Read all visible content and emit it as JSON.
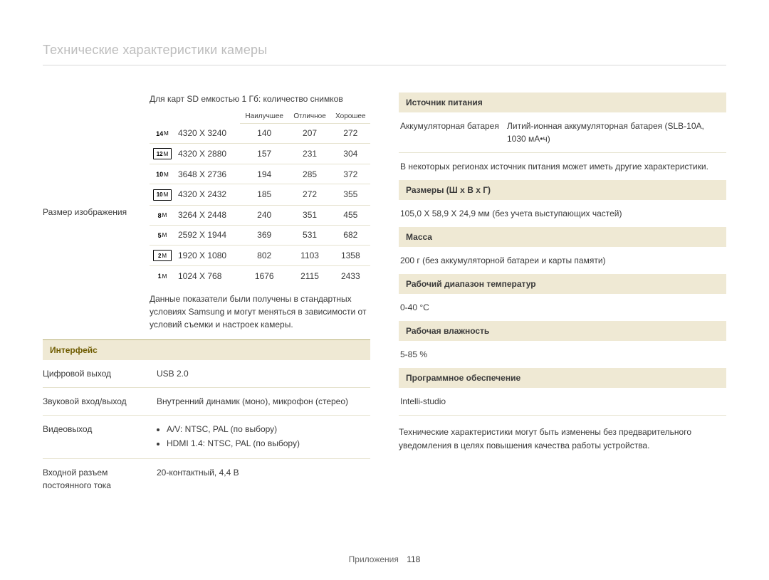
{
  "title": "Технические характеристики камеры",
  "left": {
    "image_size_label": "Размер изображения",
    "sd_intro": "Для карт SD емкостью 1 Гб: количество снимков",
    "table": {
      "columns": [
        "Наилучшее",
        "Отличное",
        "Хорошее"
      ],
      "rows": [
        {
          "icon": "14m",
          "boxed": false,
          "res": "4320 X 3240",
          "v": [
            "140",
            "207",
            "272"
          ]
        },
        {
          "icon": "12m",
          "boxed": true,
          "res": "4320 X 2880",
          "v": [
            "157",
            "231",
            "304"
          ]
        },
        {
          "icon": "10m",
          "boxed": false,
          "res": "3648 X 2736",
          "v": [
            "194",
            "285",
            "372"
          ]
        },
        {
          "icon": "10m",
          "boxed": true,
          "res": "4320 X 2432",
          "v": [
            "185",
            "272",
            "355"
          ]
        },
        {
          "icon": "8m",
          "boxed": false,
          "res": "3264 X 2448",
          "v": [
            "240",
            "351",
            "455"
          ]
        },
        {
          "icon": "5m",
          "boxed": false,
          "res": "2592 X 1944",
          "v": [
            "369",
            "531",
            "682"
          ]
        },
        {
          "icon": "2m",
          "boxed": true,
          "res": "1920 X 1080",
          "v": [
            "802",
            "1103",
            "1358"
          ]
        },
        {
          "icon": "1m",
          "boxed": false,
          "res": "1024 X 768",
          "v": [
            "1676",
            "2115",
            "2433"
          ]
        }
      ]
    },
    "footnote": "Данные показатели были получены в стандартных условиях Samsung и могут меняться в зависимости от условий съемки и настроек камеры.",
    "interface_header": "Интерфейс",
    "interface_rows": [
      {
        "k": "Цифровой выход",
        "v": "USB 2.0"
      },
      {
        "k": "Звуковой вход/выход",
        "v": "Внутренний динамик (моно), микрофон (стерео)"
      },
      {
        "k": "Видеовыход",
        "bullets": [
          "A/V: NTSC, PAL (по выбору)",
          "HDMI 1.4: NTSC, PAL (по выбору)"
        ]
      },
      {
        "k": "Входной разъем постоянного тока",
        "v": "20-контактный, 4,4 В"
      }
    ]
  },
  "right": {
    "sections": [
      {
        "header": "Источник питания",
        "kv": {
          "k": "Аккумуляторная батарея",
          "v": "Литий-ионная аккумуляторная батарея (SLB-10A, 1030 мА•ч)"
        },
        "note": "В некоторых регионах источник питания может иметь другие характеристики."
      },
      {
        "header": "Размеры (Ш x В x Г)",
        "value": "105,0 X 58,9 X 24,9 мм (без учета выступающих частей)"
      },
      {
        "header": "Масса",
        "value": "200 г (без аккумуляторной батареи и карты памяти)"
      },
      {
        "header": "Рабочий диапазон температур",
        "value": "0-40 °C"
      },
      {
        "header": "Рабочая влажность",
        "value": "5-85 %"
      },
      {
        "header": "Программное обеспечение",
        "value": "Intelli-studio"
      }
    ],
    "closing": "Технические характеристики могут быть изменены без предварительного уведомления в целях повышения качества работы устройства."
  },
  "footer": {
    "label": "Приложения",
    "page": "118"
  },
  "style": {
    "header_bg": "#efe9d4",
    "header_fg_accent": "#6f5c00",
    "hairline": "#e6e3cf",
    "title_color": "#bdbdbd",
    "font_size_base": 12
  }
}
